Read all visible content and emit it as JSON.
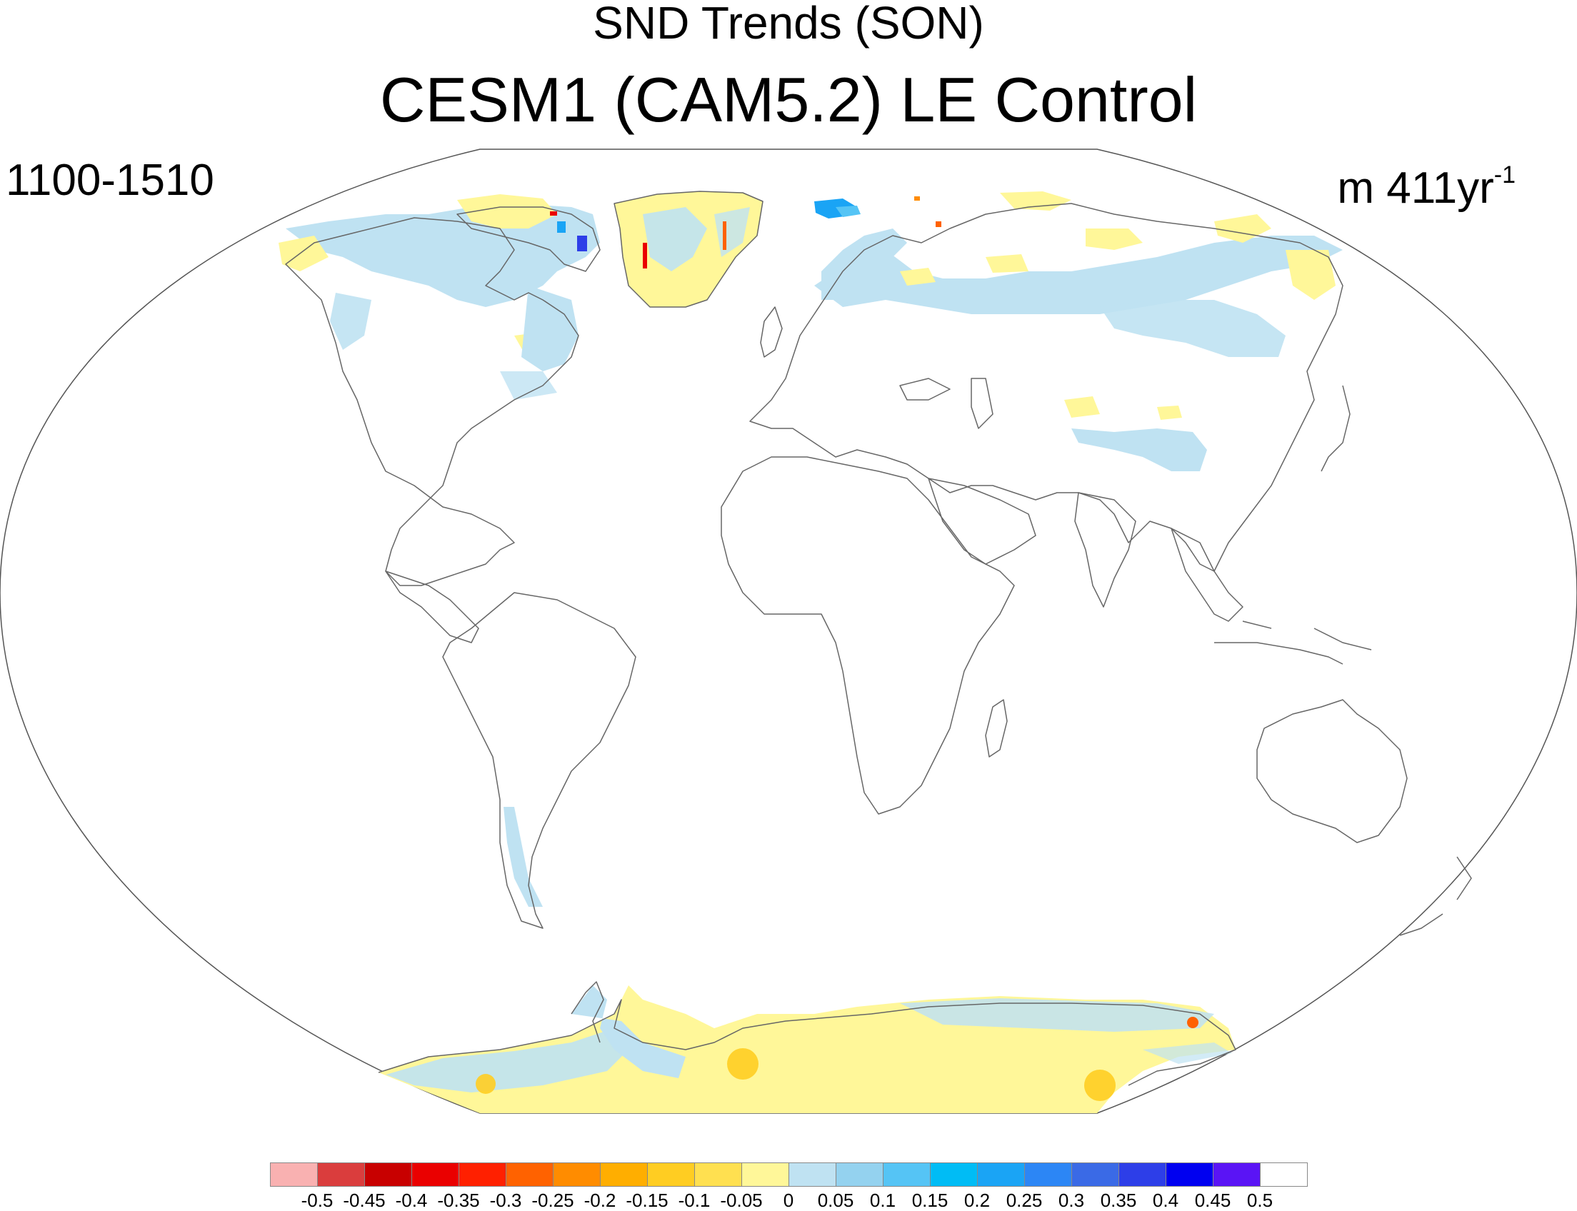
{
  "header": {
    "variable_title": "SND Trends (SON)",
    "model_title": "CESM1 (CAM5.2) LE Control",
    "period": "1100-1510",
    "units_base": "m 411yr",
    "units_exp": "-1"
  },
  "colorbar": {
    "labels": [
      "-0.5",
      "-0.45",
      "-0.4",
      "-0.35",
      "-0.3",
      "-0.25",
      "-0.2",
      "-0.15",
      "-0.1",
      "-0.05",
      "0",
      "0.05",
      "0.1",
      "0.15",
      "0.2",
      "0.25",
      "0.3",
      "0.35",
      "0.4",
      "0.45",
      "0.5"
    ],
    "colors": [
      "#f9b1b1",
      "#da3d3d",
      "#c80000",
      "#ea0000",
      "#ff2000",
      "#ff6200",
      "#ff8c00",
      "#ffae00",
      "#ffcd22",
      "#ffe050",
      "#fff799",
      "#bfe2f2",
      "#94d2ef",
      "#55c4f5",
      "#00bcf5",
      "#1aa4f5",
      "#2c86f5",
      "#3a6ae6",
      "#2d3ee8",
      "#0000f0",
      "#5a14f5",
      "#ffffff"
    ]
  },
  "map": {
    "projection": "winkel-tripel-like (elliptical global)",
    "coastline_color": "#666666",
    "palette": {
      "light_yellow": "#fff799",
      "light_blue": "#bfe2f2",
      "mid_blue": "#94d2ef",
      "orange": "#ff8c00",
      "deep_blue": "#2d3ee8"
    }
  }
}
